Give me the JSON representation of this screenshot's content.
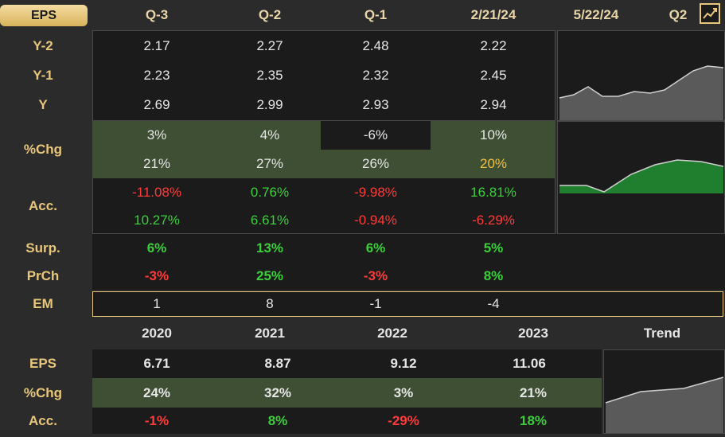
{
  "header": {
    "tab_label": "EPS",
    "cols": [
      "Q-3",
      "Q-2",
      "Q-1",
      "2/21/24",
      "5/22/24",
      "Q2"
    ]
  },
  "rows": {
    "y2": {
      "label": "Y-2",
      "vals": [
        "2.17",
        "2.27",
        "2.48",
        "2.22"
      ]
    },
    "y1": {
      "label": "Y-1",
      "vals": [
        "2.23",
        "2.35",
        "2.32",
        "2.45"
      ]
    },
    "y": {
      "label": "Y",
      "vals": [
        "2.69",
        "2.99",
        "2.93",
        "2.94"
      ]
    },
    "chg": {
      "label": "%Chg",
      "row1": [
        "3%",
        "4%",
        "-6%",
        "10%"
      ],
      "row2": [
        "21%",
        "27%",
        "26%",
        "20%"
      ]
    },
    "acc": {
      "label": "Acc.",
      "row1": [
        "-11.08%",
        "0.76%",
        "-9.98%",
        "16.81%"
      ],
      "row2": [
        "10.27%",
        "6.61%",
        "-0.94%",
        "-6.29%"
      ]
    },
    "surp": {
      "label": "Surp.",
      "vals": [
        "6%",
        "13%",
        "6%",
        "5%"
      ]
    },
    "prch": {
      "label": "PrCh",
      "vals": [
        "-3%",
        "25%",
        "-3%",
        "8%"
      ]
    },
    "em": {
      "label": "EM",
      "vals": [
        "1",
        "8",
        "-1",
        "-4"
      ]
    }
  },
  "annual": {
    "years": [
      "2020",
      "2021",
      "2022",
      "2023"
    ],
    "trend_label": "Trend",
    "eps": {
      "label": "EPS",
      "vals": [
        "6.71",
        "8.87",
        "9.12",
        "11.06"
      ]
    },
    "chg": {
      "label": "%Chg",
      "vals": [
        "24%",
        "32%",
        "3%",
        "21%"
      ]
    },
    "acc": {
      "label": "Acc.",
      "vals": [
        "-1%",
        "8%",
        "-29%",
        "18%"
      ]
    }
  },
  "icons": {
    "chart": "line-chart-icon"
  },
  "colors": {
    "gold": "#e8c77a",
    "red": "#ff3a3a",
    "green": "#3ccf3c",
    "panel_green": "#3f4f33"
  }
}
